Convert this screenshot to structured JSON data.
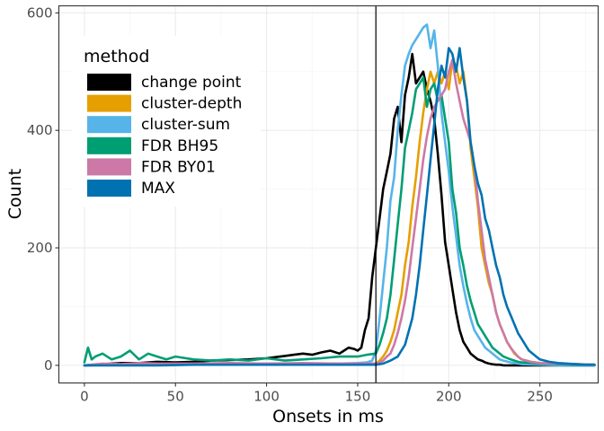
{
  "chart_data": {
    "type": "line",
    "title": "",
    "xlabel": "Onsets in ms",
    "ylabel": "Count",
    "xlim": [
      -14,
      282
    ],
    "ylim": [
      -30,
      612
    ],
    "xticks": [
      0,
      50,
      100,
      150,
      200,
      250
    ],
    "yticks": [
      0,
      200,
      400,
      600
    ],
    "grid": true,
    "legend": {
      "title": "method",
      "position": "top-left"
    },
    "vline": 160,
    "series": [
      {
        "name": "change point",
        "color": "#000000",
        "x": [
          0,
          10,
          20,
          30,
          40,
          50,
          60,
          70,
          80,
          90,
          100,
          105,
          110,
          115,
          120,
          125,
          130,
          135,
          140,
          145,
          148,
          150,
          152,
          154,
          156,
          158,
          160,
          162,
          164,
          166,
          168,
          170,
          172,
          174,
          176,
          178,
          180,
          182,
          184,
          186,
          188,
          190,
          192,
          194,
          196,
          198,
          200,
          202,
          204,
          206,
          208,
          210,
          212,
          214,
          216,
          218,
          220,
          222,
          224,
          226,
          228,
          230,
          232,
          234,
          236,
          240,
          250,
          260,
          270,
          280
        ],
        "values": [
          0,
          2,
          4,
          4,
          6,
          5,
          6,
          8,
          9,
          10,
          12,
          14,
          16,
          18,
          20,
          18,
          22,
          25,
          20,
          30,
          28,
          25,
          30,
          60,
          80,
          150,
          200,
          250,
          300,
          330,
          360,
          420,
          440,
          380,
          460,
          490,
          530,
          480,
          490,
          500,
          470,
          450,
          420,
          360,
          290,
          210,
          170,
          130,
          90,
          60,
          40,
          30,
          20,
          15,
          10,
          8,
          5,
          3,
          2,
          1,
          1,
          0,
          0,
          0,
          0,
          0,
          0,
          0,
          0,
          0
        ]
      },
      {
        "name": "cluster-depth",
        "color": "#E69F00",
        "x": [
          0,
          20,
          40,
          60,
          80,
          100,
          120,
          140,
          150,
          155,
          160,
          162,
          164,
          166,
          168,
          170,
          172,
          174,
          176,
          178,
          180,
          182,
          184,
          186,
          188,
          190,
          192,
          194,
          196,
          198,
          200,
          202,
          204,
          206,
          208,
          210,
          212,
          214,
          216,
          218,
          220,
          222,
          224,
          226,
          228,
          230,
          232,
          234,
          236,
          238,
          240,
          245,
          250,
          260,
          270,
          280
        ],
        "values": [
          0,
          1,
          1,
          2,
          2,
          3,
          3,
          3,
          3,
          3,
          3,
          8,
          15,
          25,
          40,
          60,
          90,
          120,
          170,
          210,
          270,
          320,
          380,
          430,
          470,
          500,
          480,
          500,
          480,
          500,
          470,
          520,
          510,
          480,
          500,
          450,
          370,
          320,
          270,
          200,
          170,
          140,
          120,
          90,
          70,
          55,
          40,
          30,
          20,
          15,
          10,
          6,
          4,
          3,
          2,
          1
        ]
      },
      {
        "name": "cluster-sum",
        "color": "#56B4E9",
        "x": [
          0,
          20,
          40,
          60,
          80,
          100,
          120,
          140,
          150,
          155,
          158,
          160,
          162,
          164,
          166,
          168,
          170,
          172,
          174,
          176,
          178,
          180,
          182,
          184,
          186,
          188,
          190,
          192,
          194,
          196,
          198,
          200,
          202,
          204,
          206,
          208,
          210,
          212,
          214,
          216,
          218,
          220,
          222,
          224,
          226,
          228,
          230,
          234,
          238,
          240,
          250,
          260,
          270,
          280
        ],
        "values": [
          0,
          1,
          2,
          2,
          3,
          3,
          3,
          3,
          4,
          5,
          8,
          25,
          80,
          140,
          200,
          280,
          320,
          400,
          460,
          510,
          530,
          545,
          555,
          565,
          575,
          580,
          540,
          570,
          510,
          430,
          380,
          330,
          270,
          220,
          170,
          135,
          105,
          80,
          60,
          50,
          40,
          30,
          25,
          20,
          15,
          10,
          8,
          5,
          3,
          2,
          1,
          0,
          0,
          0
        ]
      },
      {
        "name": "FDR BH95",
        "color": "#009E73",
        "x": [
          0,
          2,
          4,
          6,
          10,
          15,
          20,
          25,
          30,
          35,
          40,
          45,
          50,
          60,
          70,
          80,
          90,
          100,
          110,
          120,
          130,
          140,
          150,
          155,
          160,
          162,
          164,
          166,
          168,
          170,
          172,
          174,
          176,
          178,
          180,
          182,
          184,
          186,
          188,
          190,
          192,
          194,
          196,
          198,
          200,
          202,
          204,
          206,
          208,
          210,
          212,
          214,
          216,
          218,
          220,
          222,
          224,
          226,
          228,
          230,
          234,
          238,
          240,
          250,
          260,
          270,
          280
        ],
        "values": [
          5,
          30,
          10,
          15,
          20,
          10,
          15,
          25,
          10,
          20,
          15,
          10,
          15,
          10,
          8,
          10,
          8,
          12,
          8,
          10,
          12,
          15,
          15,
          18,
          20,
          35,
          55,
          80,
          120,
          180,
          240,
          300,
          370,
          400,
          430,
          470,
          480,
          490,
          440,
          470,
          480,
          450,
          460,
          420,
          380,
          300,
          260,
          200,
          170,
          135,
          110,
          90,
          70,
          60,
          50,
          40,
          30,
          25,
          20,
          15,
          10,
          6,
          5,
          3,
          2,
          1,
          1
        ]
      },
      {
        "name": "FDR BY01",
        "color": "#CC79A7",
        "x": [
          0,
          10,
          20,
          30,
          40,
          60,
          80,
          100,
          120,
          140,
          150,
          160,
          162,
          164,
          166,
          168,
          170,
          172,
          174,
          176,
          178,
          180,
          182,
          184,
          186,
          188,
          190,
          192,
          194,
          196,
          198,
          200,
          202,
          204,
          206,
          208,
          210,
          212,
          214,
          216,
          218,
          220,
          222,
          224,
          226,
          228,
          230,
          232,
          234,
          236,
          238,
          240,
          245,
          250,
          260,
          270,
          280
        ],
        "values": [
          0,
          3,
          2,
          4,
          3,
          3,
          4,
          3,
          4,
          3,
          3,
          3,
          5,
          8,
          15,
          20,
          35,
          55,
          80,
          110,
          150,
          200,
          250,
          300,
          350,
          390,
          420,
          440,
          450,
          460,
          470,
          500,
          520,
          480,
          450,
          420,
          400,
          380,
          340,
          280,
          230,
          180,
          150,
          120,
          90,
          70,
          55,
          40,
          30,
          22,
          15,
          10,
          6,
          4,
          3,
          2,
          1
        ]
      },
      {
        "name": "MAX",
        "color": "#0072B2",
        "x": [
          0,
          20,
          40,
          60,
          80,
          100,
          120,
          140,
          150,
          160,
          164,
          168,
          172,
          176,
          180,
          182,
          184,
          186,
          188,
          190,
          192,
          194,
          196,
          198,
          200,
          202,
          204,
          206,
          208,
          210,
          212,
          214,
          216,
          218,
          220,
          222,
          224,
          226,
          228,
          230,
          232,
          234,
          236,
          238,
          240,
          242,
          244,
          246,
          248,
          250,
          255,
          260,
          265,
          270,
          275,
          280
        ],
        "values": [
          0,
          0,
          0,
          1,
          1,
          1,
          1,
          1,
          1,
          1,
          3,
          8,
          15,
          35,
          80,
          120,
          170,
          230,
          290,
          350,
          410,
          470,
          510,
          490,
          540,
          530,
          500,
          540,
          490,
          450,
          380,
          340,
          310,
          290,
          250,
          230,
          200,
          170,
          150,
          120,
          100,
          85,
          70,
          55,
          45,
          35,
          25,
          20,
          15,
          10,
          6,
          4,
          3,
          2,
          1,
          1
        ]
      }
    ]
  }
}
